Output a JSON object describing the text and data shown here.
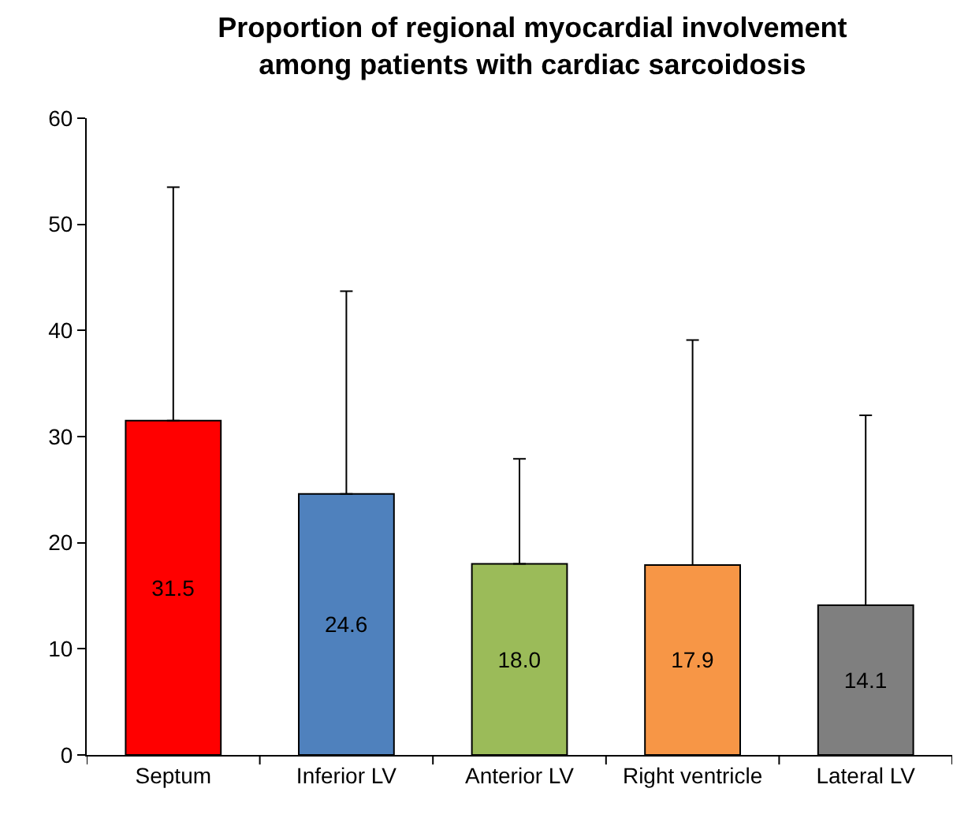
{
  "chart_data": {
    "type": "bar",
    "title": "Proportion of regional myocardial involvement\namong patients with cardiac sarcoidosis",
    "categories": [
      "Septum",
      "Inferior LV",
      "Anterior LV",
      "Right ventricle",
      "Lateral LV"
    ],
    "values": [
      31.5,
      24.6,
      18.0,
      17.9,
      14.1
    ],
    "value_labels": [
      "31.5",
      "24.6",
      "18.0",
      "17.9",
      "14.1"
    ],
    "colors": [
      "#ff0000",
      "#4f81bd",
      "#9bbb59",
      "#f79646",
      "#7f7f7f"
    ],
    "errors": [
      [
        31.5,
        53.5
      ],
      [
        24.6,
        43.7
      ],
      [
        18.0,
        27.9
      ],
      [
        17.9,
        39.1
      ],
      [
        14.1,
        32.0
      ]
    ],
    "ylim": [
      0,
      60
    ],
    "yticks": [
      0,
      10,
      20,
      30,
      40,
      50,
      60
    ],
    "legend": false
  }
}
